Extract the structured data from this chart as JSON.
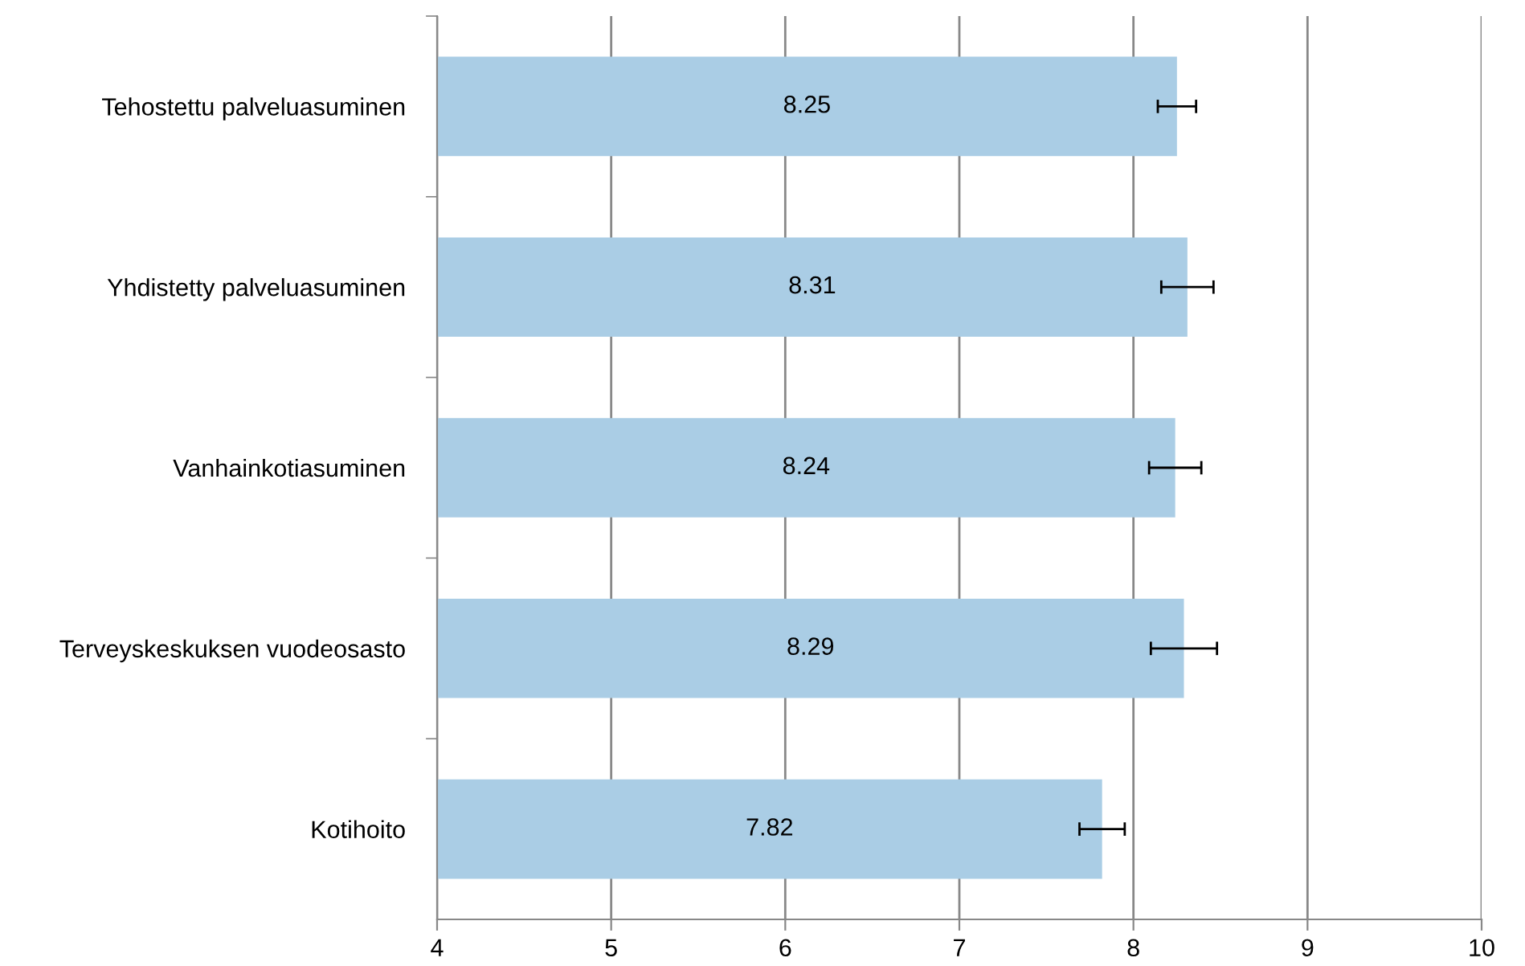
{
  "chart_data": {
    "type": "bar",
    "orientation": "horizontal",
    "categories": [
      "Tehostettu palveluasuminen",
      "Yhdistetty palveluasuminen",
      "Vanhainkotiasuminen",
      "Terveyskeskuksen vuodeosasto",
      "Kotihoito"
    ],
    "values": [
      8.25,
      8.31,
      8.24,
      8.29,
      7.82
    ],
    "errors": [
      0.11,
      0.15,
      0.15,
      0.19,
      0.13
    ],
    "color": "#aacde5",
    "data_labels": true,
    "xlim": [
      4,
      10
    ],
    "xticks": [
      4,
      5,
      6,
      7,
      8,
      9,
      10
    ],
    "grid": "x",
    "legend": false
  }
}
